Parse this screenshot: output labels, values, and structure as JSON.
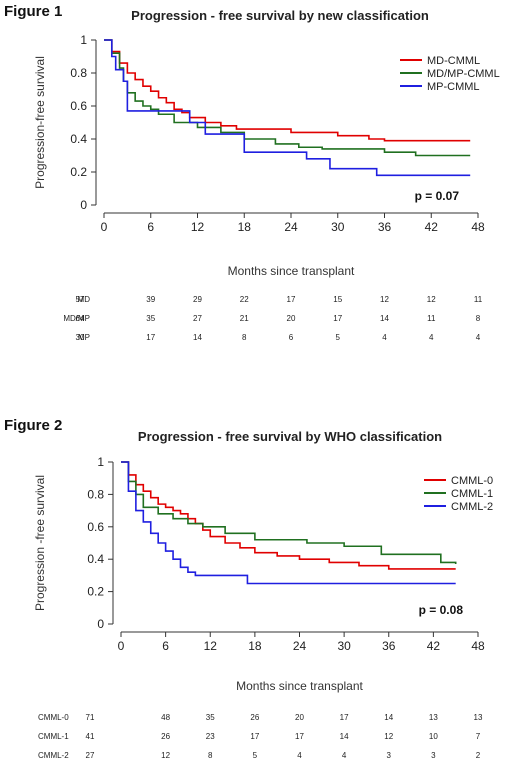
{
  "chart_data": [
    {
      "type": "line",
      "figure_label": "Figure 1",
      "title": "Progression - free survival by new classification",
      "xlabel": "Months since transplant",
      "ylabel": "Progression-free survival",
      "xlim": [
        0,
        48
      ],
      "ylim": [
        0,
        1
      ],
      "x_ticks": [
        "0",
        "6",
        "12",
        "18",
        "24",
        "30",
        "36",
        "42",
        "48"
      ],
      "y_ticks": [
        "0",
        "0.2",
        "0.4",
        "0.6",
        "0.8",
        "1"
      ],
      "p_value": "p = 0.07",
      "legend_position": "top-right",
      "series": [
        {
          "name": "MD-CMML",
          "color": "#e00000",
          "x": [
            0,
            1,
            2,
            3,
            4,
            5,
            6,
            7,
            8,
            9,
            10,
            11,
            13,
            15,
            17,
            19,
            24,
            30,
            34,
            36,
            47
          ],
          "y": [
            1,
            0.93,
            0.86,
            0.8,
            0.76,
            0.72,
            0.69,
            0.65,
            0.62,
            0.58,
            0.56,
            0.53,
            0.5,
            0.48,
            0.46,
            0.46,
            0.44,
            0.42,
            0.4,
            0.39,
            0.39
          ]
        },
        {
          "name": "MD/MP-CMML",
          "color": "#207020",
          "x": [
            0,
            1,
            2,
            2.5,
            3,
            4,
            5,
            6,
            7,
            9,
            12,
            15,
            18,
            22,
            25,
            28,
            32,
            34,
            36,
            40,
            47
          ],
          "y": [
            1,
            0.92,
            0.83,
            0.75,
            0.68,
            0.63,
            0.6,
            0.58,
            0.55,
            0.5,
            0.47,
            0.44,
            0.4,
            0.37,
            0.35,
            0.34,
            0.34,
            0.34,
            0.32,
            0.3,
            0.3
          ]
        },
        {
          "name": "MP-CMML",
          "color": "#1f1fe0",
          "x": [
            0,
            1,
            1.5,
            2.5,
            3,
            9,
            11,
            13,
            15,
            18,
            24,
            26,
            29,
            35,
            47
          ],
          "y": [
            1,
            0.9,
            0.82,
            0.75,
            0.57,
            0.57,
            0.5,
            0.43,
            0.43,
            0.32,
            0.32,
            0.28,
            0.22,
            0.18,
            0.18
          ]
        }
      ],
      "risk_table": {
        "rows": [
          {
            "label": "MD",
            "values": [
              "57",
              "39",
              "29",
              "22",
              "17",
              "15",
              "12",
              "12",
              "11"
            ]
          },
          {
            "label": "MD/MP",
            "values": [
              "64",
              "35",
              "27",
              "21",
              "20",
              "17",
              "14",
              "11",
              "8"
            ]
          },
          {
            "label": "MP",
            "values": [
              "30",
              "17",
              "14",
              "8",
              "6",
              "5",
              "4",
              "4",
              "4"
            ]
          }
        ]
      }
    },
    {
      "type": "line",
      "figure_label": "Figure 2",
      "title": "Progression - free survival by WHO classification",
      "xlabel": "Months since transplant",
      "ylabel": "Progression -free survival",
      "xlim": [
        0,
        48
      ],
      "ylim": [
        0,
        1
      ],
      "x_ticks": [
        "0",
        "6",
        "12",
        "18",
        "24",
        "30",
        "36",
        "42",
        "48"
      ],
      "y_ticks": [
        "0",
        "0.2",
        "0.4",
        "0.6",
        "0.8",
        "1"
      ],
      "p_value": "p = 0.08",
      "legend_position": "top-right",
      "series": [
        {
          "name": "CMML-0",
          "color": "#e00000",
          "x": [
            0,
            1,
            2,
            3,
            4,
            5,
            6,
            7,
            8,
            9,
            10,
            11,
            12,
            14,
            16,
            18,
            21,
            24,
            28,
            32,
            36,
            45
          ],
          "y": [
            1,
            0.92,
            0.86,
            0.82,
            0.78,
            0.74,
            0.72,
            0.7,
            0.68,
            0.65,
            0.62,
            0.58,
            0.54,
            0.5,
            0.47,
            0.44,
            0.42,
            0.4,
            0.38,
            0.36,
            0.34,
            0.34
          ]
        },
        {
          "name": "CMML-1",
          "color": "#207020",
          "x": [
            0,
            1,
            2,
            3,
            5,
            7,
            9,
            11,
            14,
            18,
            25,
            30,
            35,
            43,
            45
          ],
          "y": [
            1,
            0.88,
            0.8,
            0.72,
            0.68,
            0.65,
            0.62,
            0.6,
            0.56,
            0.52,
            0.5,
            0.48,
            0.43,
            0.38,
            0.37
          ]
        },
        {
          "name": "CMML-2",
          "color": "#1f1fe0",
          "x": [
            0,
            1,
            2,
            3,
            4,
            5,
            6,
            7,
            8,
            9,
            10,
            13,
            17,
            45
          ],
          "y": [
            1,
            0.82,
            0.7,
            0.63,
            0.56,
            0.5,
            0.45,
            0.4,
            0.35,
            0.32,
            0.3,
            0.3,
            0.25,
            0.25
          ]
        }
      ],
      "risk_table": {
        "rows": [
          {
            "label": "CMML-0",
            "values": [
              "71",
              "48",
              "35",
              "26",
              "20",
              "17",
              "14",
              "13",
              "13"
            ]
          },
          {
            "label": "CMML-1",
            "values": [
              "41",
              "26",
              "23",
              "17",
              "17",
              "14",
              "12",
              "10",
              "7"
            ]
          },
          {
            "label": "CMML-2",
            "values": [
              "27",
              "12",
              "8",
              "5",
              "4",
              "4",
              "3",
              "3",
              "2"
            ]
          }
        ]
      }
    }
  ]
}
